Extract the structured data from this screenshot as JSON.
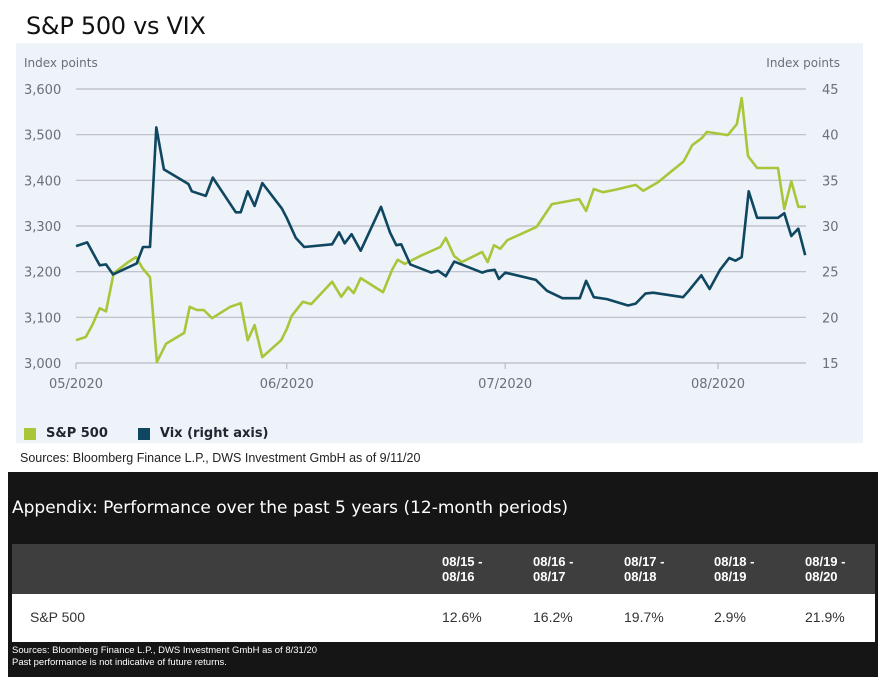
{
  "title": "S&P 500 vs VIX",
  "chart_data": {
    "type": "line",
    "title": "S&P 500 vs VIX",
    "x_unit": "days since 05/01/2020",
    "xlim": [
      0,
      105
    ],
    "x_ticks": [
      {
        "day": 0,
        "label": "05/2020"
      },
      {
        "day": 30.2,
        "label": "06/2020"
      },
      {
        "day": 61.5,
        "label": "07/2020"
      },
      {
        "day": 92,
        "label": "08/2020"
      }
    ],
    "left_axis": {
      "label": "Index points",
      "ylim": [
        3000,
        3600
      ],
      "ticks": [
        3000,
        3100,
        3200,
        3300,
        3400,
        3500,
        3600
      ],
      "tick_labels": [
        "3,000",
        "3,100",
        "3,200",
        "3,300",
        "3,400",
        "3,500",
        "3,600"
      ]
    },
    "right_axis": {
      "label": "Index points",
      "ylim": [
        15,
        45
      ],
      "ticks": [
        15,
        20,
        25,
        30,
        35,
        40,
        45
      ],
      "tick_labels": [
        "15",
        "20",
        "25",
        "30",
        "35",
        "40",
        "45"
      ]
    },
    "grid": true,
    "legend_position": "bottom-left",
    "series": [
      {
        "name": "S&P 500",
        "axis": "left",
        "color": "#a8c63a",
        "x": [
          0,
          1.4,
          2.4,
          3.4,
          4.3,
          5.4,
          7.5,
          8.6,
          9.6,
          10.6,
          11.6,
          12.9,
          15.5,
          16.3,
          17.3,
          18.3,
          19.5,
          22.1,
          23.6,
          24.6,
          25.6,
          26.7,
          29.4,
          30.2,
          30.9,
          32.5,
          33.7,
          36.7,
          38.0,
          39.0,
          39.8,
          40.8,
          44.0,
          45.3,
          46.1,
          47.1,
          49.3,
          52.2,
          53.0,
          54.2,
          55.3,
          58.2,
          59.0,
          59.9,
          60.8,
          61.8,
          66.0,
          68.2,
          72.1,
          73.1,
          74.2,
          75.5,
          77.2,
          80.2,
          81.3,
          83.4,
          87.1,
          88.3,
          89.7,
          90.4,
          93.4,
          94.7,
          95.4,
          96.3,
          97.6,
          100.6,
          101.5,
          102.5,
          103.5,
          104.6
        ],
        "values": [
          3050,
          3057,
          3085,
          3120,
          3113,
          3197,
          3221,
          3232,
          3206,
          3188,
          3002,
          3042,
          3066,
          3123,
          3116,
          3116,
          3098,
          3123,
          3131,
          3050,
          3083,
          3013,
          3050,
          3074,
          3103,
          3134,
          3129,
          3178,
          3145,
          3166,
          3153,
          3186,
          3155,
          3204,
          3226,
          3217,
          3234,
          3254,
          3274,
          3234,
          3221,
          3243,
          3221,
          3258,
          3250,
          3269,
          3298,
          3348,
          3359,
          3333,
          3381,
          3374,
          3379,
          3390,
          3377,
          3396,
          3442,
          3477,
          3493,
          3506,
          3499,
          3523,
          3580,
          3453,
          3427,
          3427,
          3337,
          3398,
          3342,
          3342
        ]
      },
      {
        "name": "Vix (right axis)",
        "axis": "right",
        "color": "#0f4660",
        "x": [
          0,
          1.6,
          3.4,
          4.3,
          5.3,
          8.7,
          9.6,
          10.6,
          11.5,
          12.6,
          16.1,
          16.6,
          18.6,
          19.6,
          22.9,
          23.6,
          24.6,
          25.6,
          26.7,
          29.5,
          30.2,
          31.5,
          32.7,
          36.7,
          37.7,
          38.5,
          39.5,
          40.8,
          43.7,
          45.0,
          45.9,
          46.6,
          47.9,
          50.9,
          51.9,
          53.0,
          54.2,
          58.2,
          59.0,
          60.0,
          60.6,
          61.5,
          65.9,
          67.5,
          69.7,
          72.2,
          73.1,
          74.2,
          76.1,
          79.1,
          80.2,
          81.6,
          82.7,
          87.0,
          87.8,
          89.6,
          90.8,
          92.3,
          93.6,
          94.5,
          95.4,
          96.4,
          97.6,
          100.6,
          101.5,
          102.5,
          103.5,
          104.5
        ],
        "values": [
          27.8,
          28.2,
          25.7,
          25.8,
          24.7,
          25.9,
          27.7,
          27.7,
          40.8,
          36.2,
          34.6,
          33.8,
          33.3,
          35.3,
          31.5,
          31.5,
          33.8,
          32.2,
          34.7,
          31.9,
          30.9,
          28.7,
          27.7,
          28.0,
          29.3,
          28.1,
          29.1,
          27.3,
          32.1,
          29.3,
          27.9,
          28.0,
          25.8,
          24.9,
          25.1,
          24.5,
          26.1,
          24.9,
          25.1,
          25.2,
          24.2,
          24.9,
          24.1,
          22.9,
          22.1,
          22.1,
          24.0,
          22.2,
          22.0,
          21.3,
          21.5,
          22.6,
          22.7,
          22.2,
          22.9,
          24.6,
          23.1,
          25.2,
          26.5,
          26.2,
          26.6,
          33.8,
          30.9,
          30.9,
          31.4,
          28.9,
          29.7,
          26.8
        ]
      }
    ]
  },
  "legend": [
    {
      "label": "S&P 500",
      "color": "#a8c63a"
    },
    {
      "label": "Vix (right axis)",
      "color": "#0f4660"
    }
  ],
  "chart_source": "Sources: Bloomberg Finance L.P., DWS Investment GmbH as of 9/11/20",
  "appendix": {
    "title": "Appendix: Performance over the past 5 years (12-month periods)",
    "columns": [
      "08/15 -\n08/16",
      "08/16 -\n08/17",
      "08/17 -\n08/18",
      "08/18 -\n08/19",
      "08/19 -\n08/20"
    ],
    "rows": [
      {
        "label": "S&P 500",
        "values": [
          "12.6%",
          "16.2%",
          "19.7%",
          "2.9%",
          "21.9%"
        ]
      }
    ],
    "source": "Sources: Bloomberg Finance L.P., DWS Investment GmbH as of 8/31/20",
    "disclaimer": "Past performance is not indicative of future returns."
  }
}
